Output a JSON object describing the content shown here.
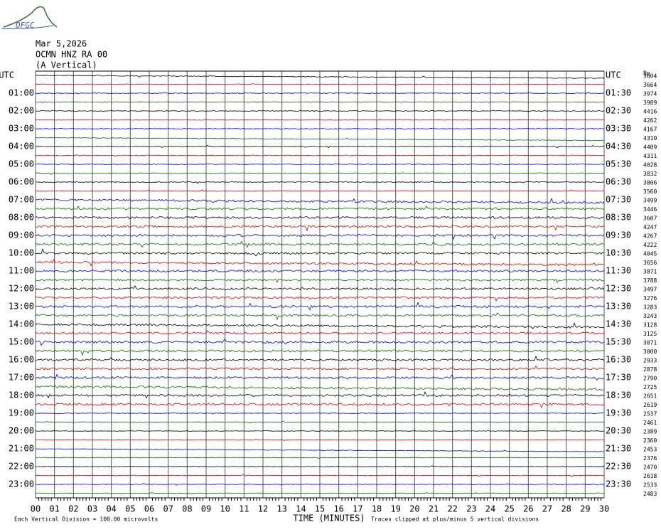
{
  "header": {
    "logo": "OFGC",
    "date": "Mar 5,2026",
    "station": "OCMN HNZ RA 00",
    "component": "(A Vertical)"
  },
  "left_labels": [
    "UTC",
    "01:00",
    "02:00",
    "03:00",
    "04:00",
    "05:00",
    "06:00",
    "07:00",
    "08:00",
    "09:00",
    "10:00",
    "11:00",
    "12:00",
    "13:00",
    "14:00",
    "15:00",
    "16:00",
    "17:00",
    "18:00",
    "19:00",
    "20:00",
    "21:00",
    "22:00",
    "23:00"
  ],
  "right_labels": [
    "UTC",
    "01:30",
    "02:30",
    "03:30",
    "04:30",
    "05:30",
    "06:30",
    "07:30",
    "08:30",
    "09:30",
    "10:30",
    "11:30",
    "12:30",
    "13:30",
    "14:30",
    "15:30",
    "16:30",
    "17:30",
    "18:30",
    "19:30",
    "20:30",
    "21:30",
    "22:30",
    "23:30"
  ],
  "scale_header": "Bp",
  "trace_scales": [
    3604,
    3664,
    3974,
    3989,
    4416,
    4262,
    4167,
    4310,
    4409,
    4311,
    4028,
    3832,
    3806,
    3560,
    3499,
    3446,
    3607,
    4247,
    4267,
    4222,
    4045,
    3656,
    3871,
    3788,
    3497,
    3276,
    3283,
    3243,
    3128,
    3125,
    3071,
    3000,
    2933,
    2878,
    2790,
    2725,
    2651,
    2619,
    2537,
    2461,
    2389,
    2360,
    2453,
    2376,
    2470,
    2618,
    2533,
    2483
  ],
  "x_labels": [
    "00",
    "01",
    "02",
    "03",
    "04",
    "05",
    "06",
    "07",
    "08",
    "09",
    "10",
    "11",
    "12",
    "13",
    "14",
    "15",
    "16",
    "17",
    "18",
    "19",
    "20",
    "21",
    "22",
    "23",
    "24",
    "25",
    "26",
    "27",
    "28",
    "29",
    "30"
  ],
  "x_title": "TIME (MINUTES)",
  "footer": {
    "division": "Each Vertical Division =  100.00 microvolts",
    "clip": "Traces clipped at plus/minus 5 vertical divisions"
  },
  "trace_colors": [
    "#000000",
    "#e00000",
    "#0000e0",
    "#007000"
  ]
}
